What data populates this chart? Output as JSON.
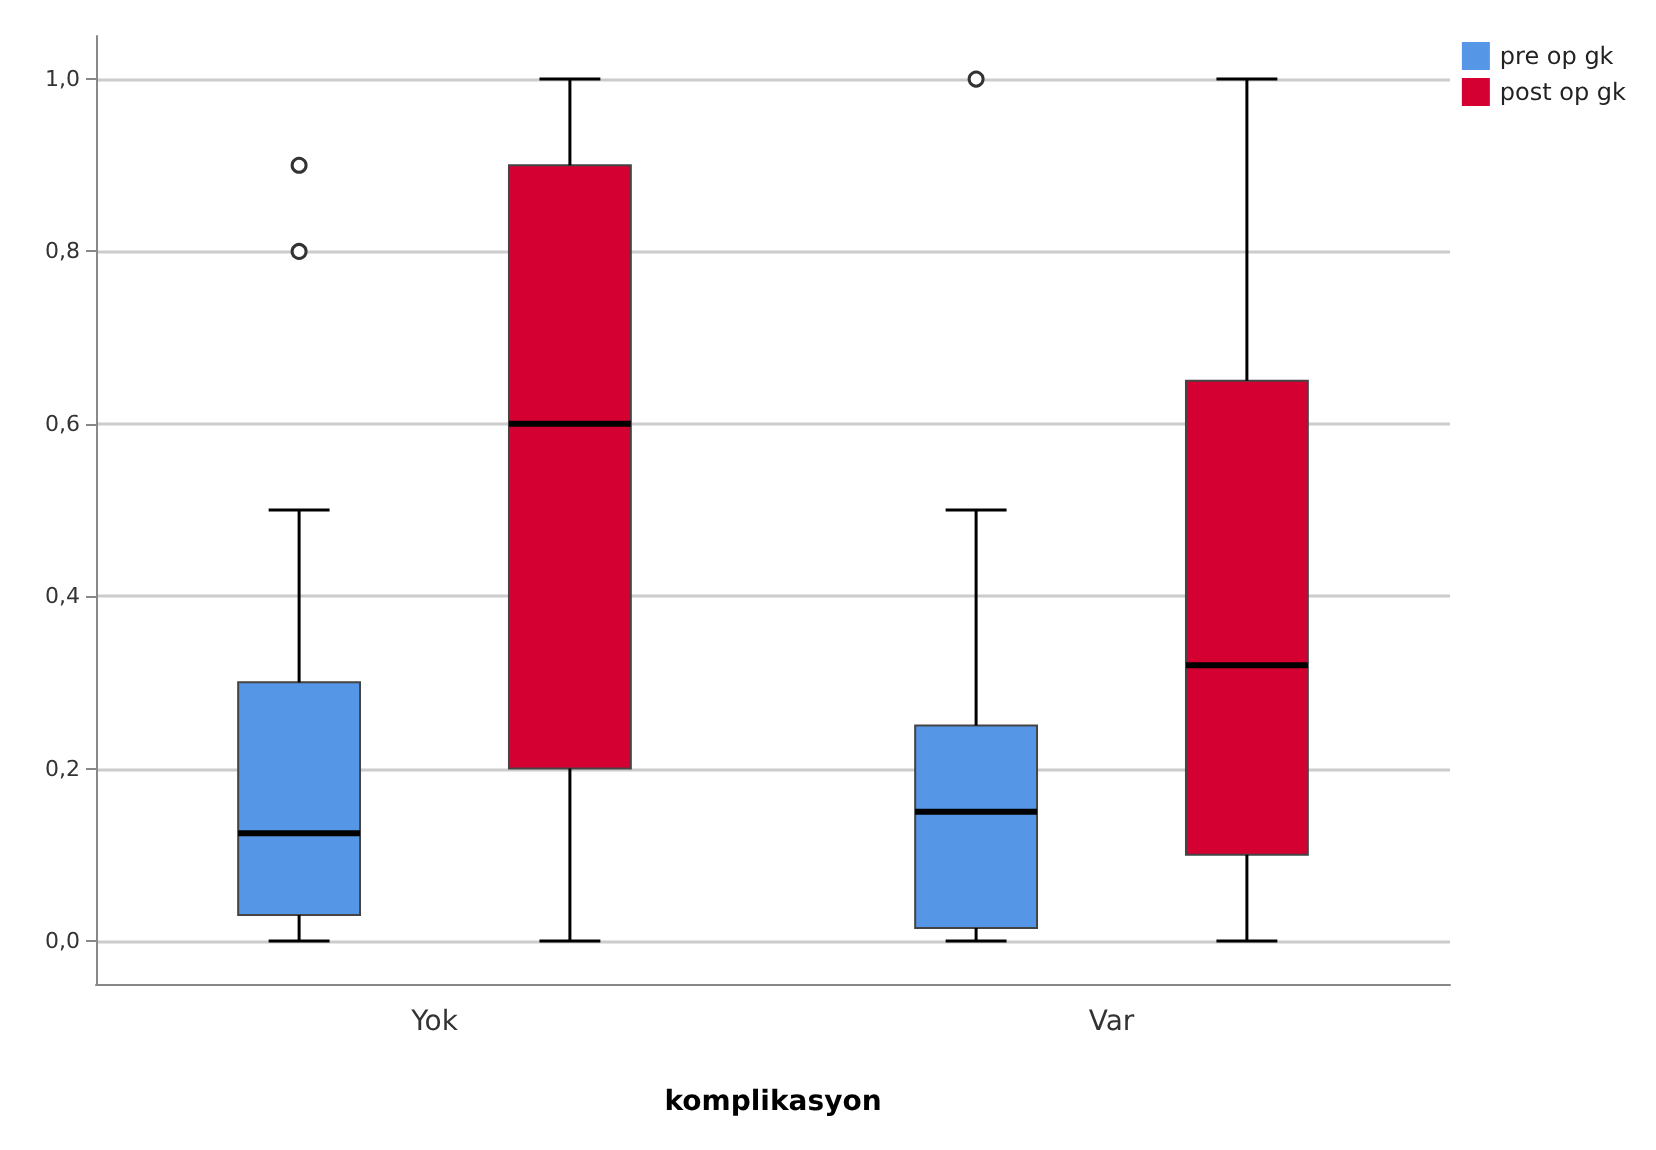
{
  "chart_data": {
    "type": "box",
    "xlabel": "komplikasyon",
    "categories": [
      "Yok",
      "Var"
    ],
    "series": [
      {
        "name": "pre op gk",
        "color": "#5596e6",
        "boxes": [
          {
            "low": 0,
            "q1": 0.03,
            "median": 0.125,
            "q3": 0.3,
            "high": 0.5,
            "outliers": [
              0.8,
              0.9
            ]
          },
          {
            "low": 0,
            "q1": 0.015,
            "median": 0.15,
            "q3": 0.25,
            "high": 0.5,
            "outliers": [
              1.0
            ]
          }
        ]
      },
      {
        "name": "post op gk",
        "color": "#d50032",
        "boxes": [
          {
            "low": 0,
            "q1": 0.2,
            "median": 0.6,
            "q3": 0.9,
            "high": 1.0
          },
          {
            "low": 0,
            "q1": 0.1,
            "median": 0.32,
            "q3": 0.65,
            "high": 1.0
          }
        ]
      }
    ],
    "ylim": [
      -0.05,
      1.05
    ],
    "yticks": [
      {
        "value": 0,
        "label": "0,0"
      },
      {
        "value": 0.2,
        "label": "0,2"
      },
      {
        "value": 0.4,
        "label": "0,4"
      },
      {
        "value": 0.6,
        "label": "0,6"
      },
      {
        "value": 0.8,
        "label": "0,8"
      },
      {
        "value": 1.0,
        "label": "1,0"
      }
    ],
    "grid": "y",
    "legend": "top right"
  }
}
